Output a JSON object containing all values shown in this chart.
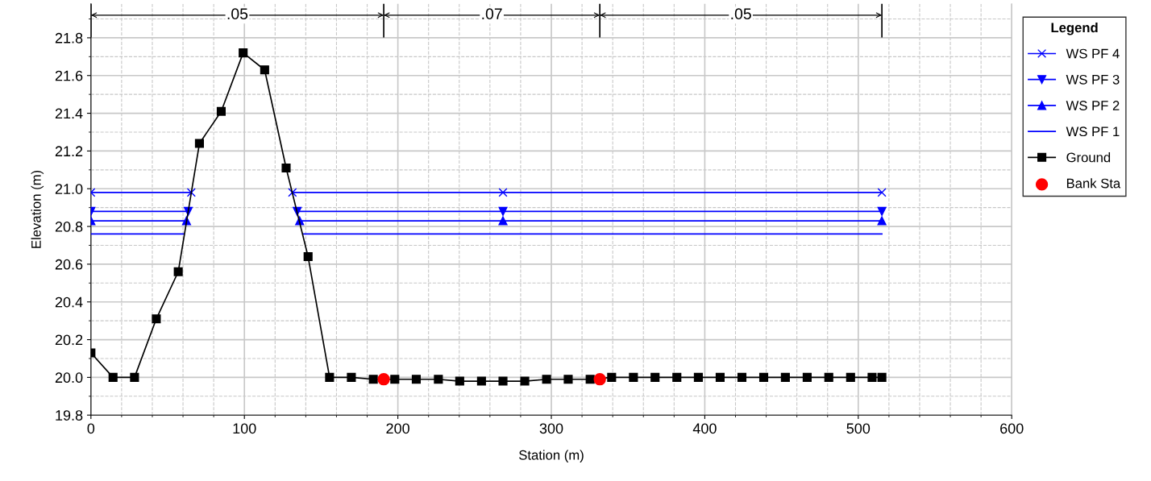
{
  "chart_data": {
    "type": "line",
    "xlabel": "Station (m)",
    "ylabel": "Elevation (m)",
    "legend_title": "Legend",
    "xlim": [
      0,
      600
    ],
    "xticks": [
      0,
      100,
      200,
      300,
      400,
      500,
      600
    ],
    "ylim": [
      19.8,
      21.98
    ],
    "yticks": [
      19.8,
      {
        "value": 20.0,
        "label": "20.0"
      },
      20.2,
      20.4,
      20.6,
      20.8,
      {
        "value": 21.0,
        "label": "21.0"
      },
      21.2,
      21.4,
      21.6,
      21.8
    ],
    "grid": true,
    "legend": "right",
    "annotations": [
      {
        "text": ".05",
        "x": 95.4,
        "y": 21.92
      },
      {
        "text": ".07",
        "x": 261.2,
        "y": 21.92
      },
      {
        "text": ".05",
        "x": 423.5,
        "y": 21.92
      }
    ],
    "series": [
      {
        "name": "WS PF 4",
        "color": "#0000ff",
        "marker": "cross",
        "x": [
          0,
          65.4,
          null,
          131.3,
          268.5,
          515.4
        ],
        "values": [
          20.98,
          20.98,
          null,
          20.98,
          20.98,
          20.98
        ]
      },
      {
        "name": "WS PF 3",
        "color": "#0000ff",
        "marker": "triangle_down",
        "x": [
          0,
          63.4,
          null,
          134.4,
          268.5,
          515.4
        ],
        "values": [
          20.88,
          20.88,
          null,
          20.88,
          20.88,
          20.88
        ]
      },
      {
        "name": "WS PF 2",
        "color": "#0000ff",
        "marker": "triangle",
        "x": [
          0,
          62.3,
          null,
          136,
          268.5,
          515.4
        ],
        "values": [
          20.83,
          20.83,
          null,
          20.83,
          20.83,
          20.83
        ]
      },
      {
        "name": "WS PF 1",
        "color": "#0000ff",
        "marker": "none",
        "x": [
          0,
          60.6,
          null,
          138.5,
          515.4
        ],
        "values": [
          20.76,
          20.76,
          null,
          20.76,
          20.76
        ]
      },
      {
        "name": "Ground",
        "color": "#000000",
        "marker": "square",
        "x": [
          0,
          14.4,
          28.4,
          42.6,
          56.9,
          70.7,
          84.9,
          99.2,
          113.2,
          127.2,
          141.5,
          155.5,
          169.7,
          184,
          198,
          212,
          226.4,
          240.3,
          254.5,
          268.5,
          282.7,
          296.9,
          311,
          325.3,
          339.3,
          353.5,
          367.6,
          381.8,
          395.8,
          410,
          424.2,
          438.4,
          452.5,
          466.7,
          480.8,
          495,
          509,
          515.4
        ],
        "values": [
          20.13,
          20.0,
          20.0,
          20.31,
          20.56,
          21.24,
          21.41,
          21.72,
          21.63,
          21.11,
          20.64,
          20.0,
          20.0,
          19.99,
          19.99,
          19.99,
          19.99,
          19.98,
          19.98,
          19.98,
          19.98,
          19.99,
          19.99,
          19.99,
          20.0,
          20.0,
          20.0,
          20.0,
          20.0,
          20.0,
          20.0,
          20.0,
          20.0,
          20.0,
          20.0,
          20.0,
          20.0,
          20.0
        ]
      },
      {
        "name": "Bank Sta",
        "type": "scatter",
        "color": "#ff0000",
        "marker": "circle",
        "x": [
          190.8,
          331.6
        ],
        "values": [
          19.99,
          19.99
        ]
      }
    ]
  }
}
